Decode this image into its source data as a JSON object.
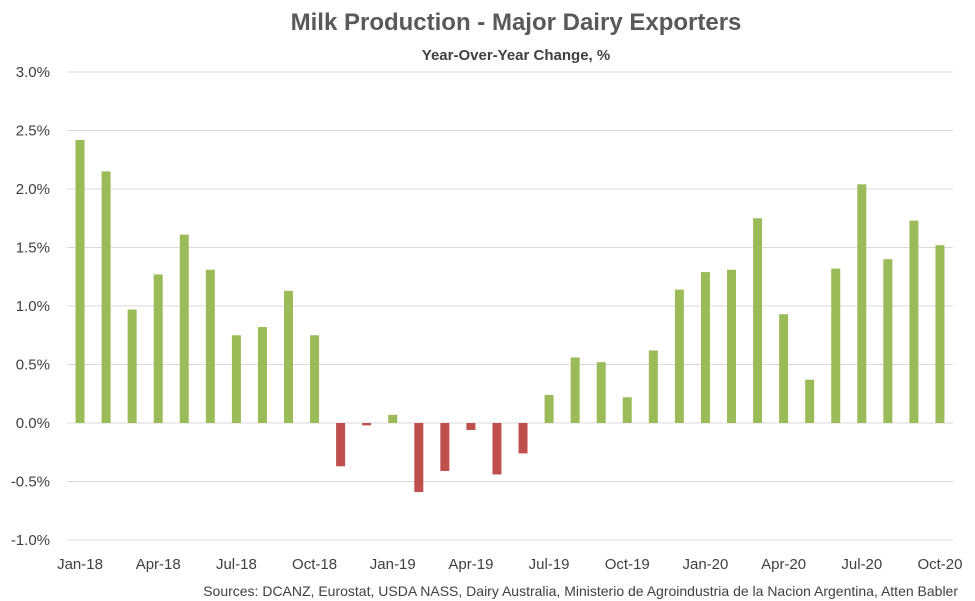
{
  "chart_data": {
    "type": "bar",
    "title": "Milk Production - Major Dairy Exporters",
    "subtitle": "Year-Over-Year Change, %",
    "source": "Sources: DCANZ, Eurostat, USDA NASS, Dairy Australia, Ministerio de Agroindustria de la Nacion Argentina, Atten Babler",
    "categories": [
      "Jan-18",
      "Feb-18",
      "Mar-18",
      "Apr-18",
      "May-18",
      "Jun-18",
      "Jul-18",
      "Aug-18",
      "Sep-18",
      "Oct-18",
      "Nov-18",
      "Dec-18",
      "Jan-19",
      "Feb-19",
      "Mar-19",
      "Apr-19",
      "May-19",
      "Jun-19",
      "Jul-19",
      "Aug-19",
      "Sep-19",
      "Oct-19",
      "Nov-19",
      "Dec-19",
      "Jan-20",
      "Feb-20",
      "Mar-20",
      "Apr-20",
      "May-20",
      "Jun-20",
      "Jul-20",
      "Aug-20",
      "Sep-20",
      "Oct-20"
    ],
    "x_tick_labels": [
      "Jan-18",
      "Apr-18",
      "Jul-18",
      "Oct-18",
      "Jan-19",
      "Apr-19",
      "Jul-19",
      "Oct-19",
      "Jan-20",
      "Apr-20",
      "Jul-20",
      "Oct-20"
    ],
    "values": [
      2.42,
      2.15,
      0.97,
      1.27,
      1.61,
      1.31,
      0.75,
      0.82,
      1.13,
      0.75,
      -0.37,
      -0.02,
      0.07,
      -0.59,
      -0.41,
      -0.06,
      -0.44,
      -0.26,
      0.24,
      0.56,
      0.52,
      0.22,
      0.62,
      1.14,
      1.29,
      1.31,
      1.75,
      0.93,
      0.37,
      1.32,
      2.04,
      1.4,
      1.73,
      1.52
    ],
    "y_tick_labels": [
      "-1.0%",
      "-0.5%",
      "0.0%",
      "0.5%",
      "1.0%",
      "1.5%",
      "2.0%",
      "2.5%",
      "3.0%"
    ],
    "ylim": [
      -1.0,
      3.0
    ],
    "y_step": 0.5,
    "grid": true,
    "colors": {
      "positive": "#9bbb59",
      "negative": "#c0504d"
    }
  }
}
